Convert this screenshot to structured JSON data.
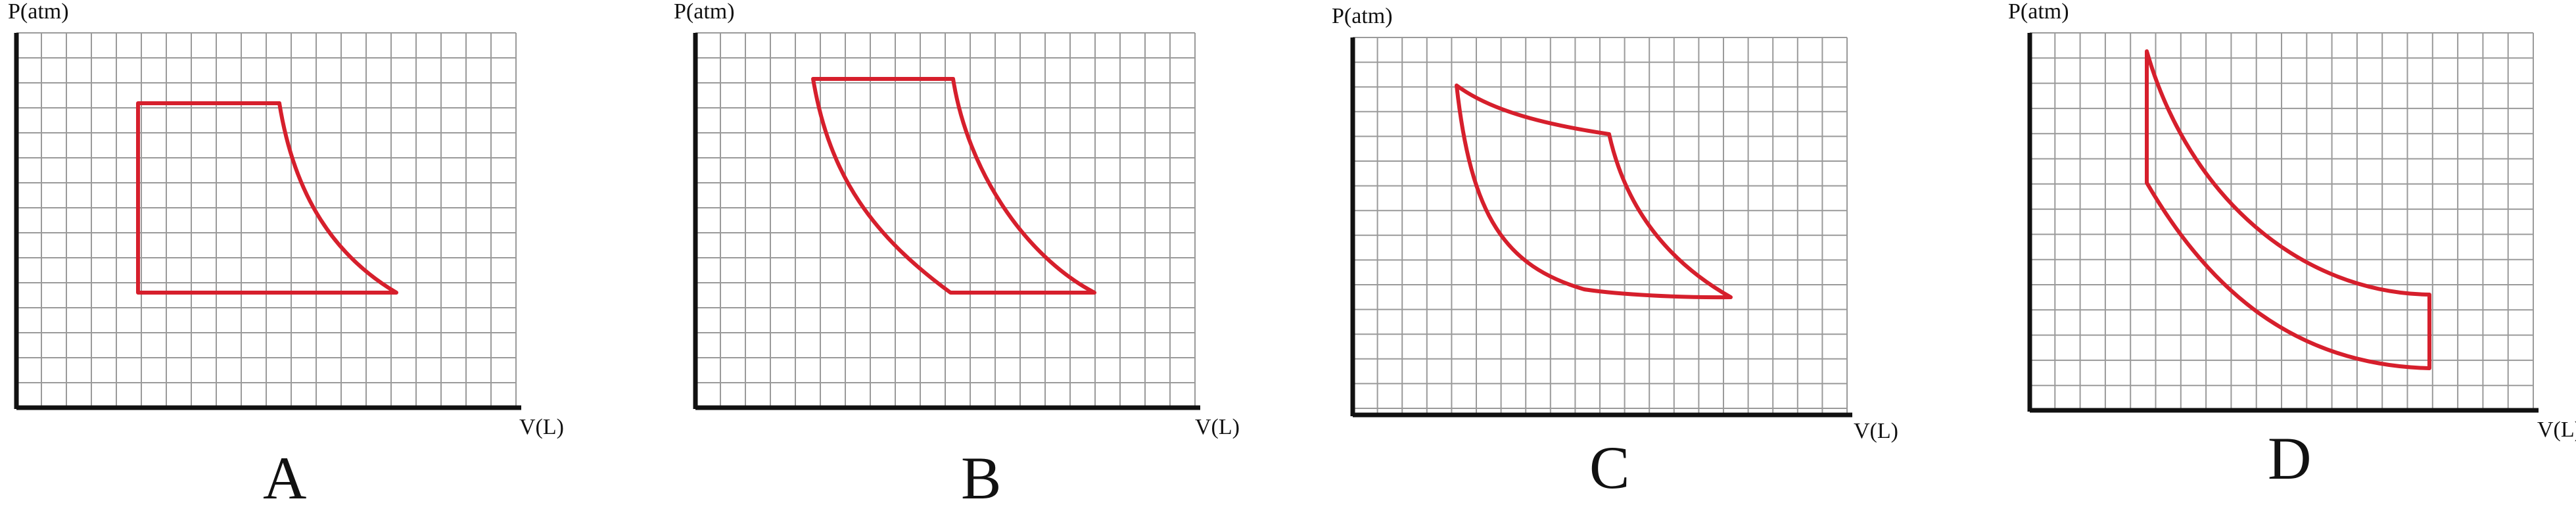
{
  "colors": {
    "grid": "#9a9a9a",
    "axis": "#111111",
    "cycle": "#d61f2c",
    "text": "#111111",
    "background": "#ffffff"
  },
  "panels": [
    {
      "id": "A",
      "label": "A",
      "y_axis_label": "P(atm)",
      "x_axis_label": "V(L)"
    },
    {
      "id": "B",
      "label": "B",
      "y_axis_label": "P(atm)",
      "x_axis_label": "V(L)"
    },
    {
      "id": "C",
      "label": "C",
      "y_axis_label": "P(atm)",
      "x_axis_label": "V(L)"
    },
    {
      "id": "D",
      "label": "D",
      "y_axis_label": "P(atm)",
      "x_axis_label": "V(L)"
    }
  ]
}
